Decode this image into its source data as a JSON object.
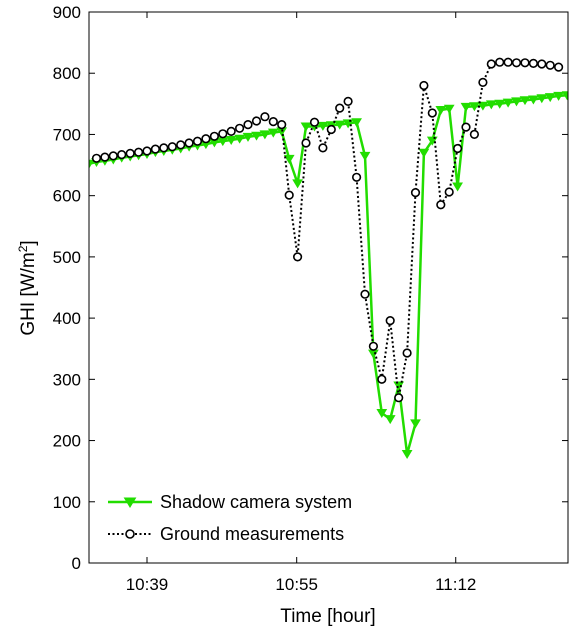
{
  "chart_data": {
    "type": "line",
    "xlabel": "Time [hour]",
    "ylabel_main": "GHI [W/m",
    "ylabel_sup": "2",
    "ylabel_close": "]",
    "x_ticks": [
      "10:39",
      "10:55",
      "11:12"
    ],
    "x_tick_minutes": [
      639,
      655,
      672
    ],
    "xlim_minutes": [
      632.8,
      684
    ],
    "ylim": [
      0,
      900
    ],
    "y_ticks": [
      0,
      100,
      200,
      300,
      400,
      500,
      600,
      700,
      800,
      900
    ],
    "grid": false,
    "legend_position": "bottom-left",
    "series": [
      {
        "name": "Shadow camera system",
        "color": "#22dd00",
        "marker": "triangle-down",
        "line_style": "solid",
        "points": [
          [
            632.8,
            652
          ],
          [
            633.6,
            655
          ],
          [
            634.5,
            657
          ],
          [
            635.4,
            659
          ],
          [
            636.3,
            662
          ],
          [
            637.2,
            664
          ],
          [
            638.1,
            666
          ],
          [
            639.0,
            668
          ],
          [
            639.9,
            671
          ],
          [
            640.8,
            673
          ],
          [
            641.7,
            675
          ],
          [
            642.6,
            677
          ],
          [
            643.5,
            680
          ],
          [
            644.4,
            682
          ],
          [
            645.3,
            684
          ],
          [
            646.2,
            687
          ],
          [
            647.1,
            689
          ],
          [
            648.0,
            691
          ],
          [
            648.9,
            693
          ],
          [
            649.8,
            696
          ],
          [
            650.7,
            698
          ],
          [
            651.6,
            700
          ],
          [
            652.5,
            703
          ],
          [
            653.4,
            705
          ],
          [
            654.2,
            660
          ],
          [
            655.1,
            620
          ],
          [
            656.0,
            713
          ],
          [
            656.9,
            713
          ],
          [
            657.8,
            714
          ],
          [
            658.7,
            715
          ],
          [
            659.6,
            716
          ],
          [
            660.5,
            718
          ],
          [
            661.4,
            720
          ],
          [
            662.3,
            665
          ],
          [
            663.2,
            342
          ],
          [
            664.1,
            245
          ],
          [
            665.0,
            235
          ],
          [
            665.9,
            290
          ],
          [
            666.8,
            178
          ],
          [
            667.7,
            228
          ],
          [
            668.6,
            670
          ],
          [
            669.5,
            690
          ],
          [
            670.4,
            740
          ],
          [
            671.3,
            742
          ],
          [
            672.2,
            615
          ],
          [
            673.1,
            745
          ],
          [
            674.0,
            746
          ],
          [
            674.9,
            747
          ],
          [
            675.8,
            749
          ],
          [
            676.7,
            750
          ],
          [
            677.6,
            752
          ],
          [
            678.5,
            754
          ],
          [
            679.4,
            756
          ],
          [
            680.3,
            757
          ],
          [
            681.2,
            759
          ],
          [
            682.1,
            761
          ],
          [
            683.0,
            763
          ],
          [
            683.9,
            764
          ]
        ]
      },
      {
        "name": "Ground measurements",
        "color": "#000000",
        "marker": "circle",
        "line_style": "dotted",
        "points": [
          [
            633.6,
            661
          ],
          [
            634.5,
            663
          ],
          [
            635.4,
            665
          ],
          [
            636.3,
            667
          ],
          [
            637.2,
            669
          ],
          [
            638.1,
            671
          ],
          [
            639.0,
            673
          ],
          [
            639.9,
            676
          ],
          [
            640.8,
            678
          ],
          [
            641.7,
            680
          ],
          [
            642.6,
            683
          ],
          [
            643.5,
            686
          ],
          [
            644.4,
            689
          ],
          [
            645.3,
            693
          ],
          [
            646.2,
            697
          ],
          [
            647.1,
            701
          ],
          [
            648.0,
            705
          ],
          [
            648.9,
            710
          ],
          [
            649.8,
            716
          ],
          [
            650.7,
            722
          ],
          [
            651.6,
            729
          ],
          [
            652.5,
            721
          ],
          [
            653.4,
            716
          ],
          [
            654.2,
            601
          ],
          [
            655.1,
            500
          ],
          [
            656.0,
            686
          ],
          [
            656.9,
            720
          ],
          [
            657.8,
            678
          ],
          [
            658.7,
            708
          ],
          [
            659.6,
            743
          ],
          [
            660.5,
            754
          ],
          [
            661.4,
            630
          ],
          [
            662.3,
            439
          ],
          [
            663.2,
            354
          ],
          [
            664.1,
            300
          ],
          [
            665.0,
            396
          ],
          [
            665.9,
            270
          ],
          [
            666.8,
            343
          ],
          [
            667.7,
            605
          ],
          [
            668.6,
            780
          ],
          [
            669.5,
            735
          ],
          [
            670.4,
            585
          ],
          [
            671.3,
            606
          ],
          [
            672.2,
            677
          ],
          [
            673.1,
            712
          ],
          [
            674.0,
            700
          ],
          [
            674.9,
            785
          ],
          [
            675.8,
            815
          ],
          [
            676.7,
            818
          ],
          [
            677.6,
            818
          ],
          [
            678.5,
            817
          ],
          [
            679.4,
            817
          ],
          [
            680.3,
            816
          ],
          [
            681.2,
            815
          ],
          [
            682.1,
            813
          ],
          [
            683.0,
            810
          ]
        ]
      }
    ]
  }
}
